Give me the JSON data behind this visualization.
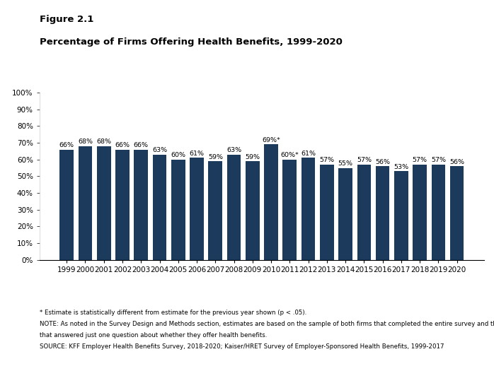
{
  "years": [
    1999,
    2000,
    2001,
    2002,
    2003,
    2004,
    2005,
    2006,
    2007,
    2008,
    2009,
    2010,
    2011,
    2012,
    2013,
    2014,
    2015,
    2016,
    2017,
    2018,
    2019,
    2020
  ],
  "values": [
    66,
    68,
    68,
    66,
    66,
    63,
    60,
    61,
    59,
    63,
    59,
    69,
    60,
    61,
    57,
    55,
    57,
    56,
    53,
    57,
    57,
    56
  ],
  "starred": [
    false,
    false,
    false,
    false,
    false,
    false,
    false,
    false,
    false,
    false,
    false,
    true,
    true,
    false,
    false,
    false,
    false,
    false,
    false,
    false,
    false,
    false
  ],
  "bar_color": "#1B3A5C",
  "title_line1": "Figure 2.1",
  "title_line2": "Percentage of Firms Offering Health Benefits, 1999-2020",
  "ylim": [
    0,
    100
  ],
  "yticks": [
    0,
    10,
    20,
    30,
    40,
    50,
    60,
    70,
    80,
    90,
    100
  ],
  "footnote1": "* Estimate is statistically different from estimate for the previous year shown (p < .05).",
  "footnote2": "NOTE: As noted in the Survey Design and Methods section, estimates are based on the sample of both firms that completed the entire survey and those",
  "footnote3": "that answered just one question about whether they offer health benefits.",
  "footnote4": "SOURCE: KFF Employer Health Benefits Survey, 2018-2020; Kaiser/HRET Survey of Employer-Sponsored Health Benefits, 1999-2017",
  "background_color": "#ffffff",
  "label_fontsize": 6.8,
  "title1_fontsize": 9.5,
  "title2_fontsize": 9.5,
  "footnote_fontsize": 6.2,
  "tick_fontsize": 7.5
}
